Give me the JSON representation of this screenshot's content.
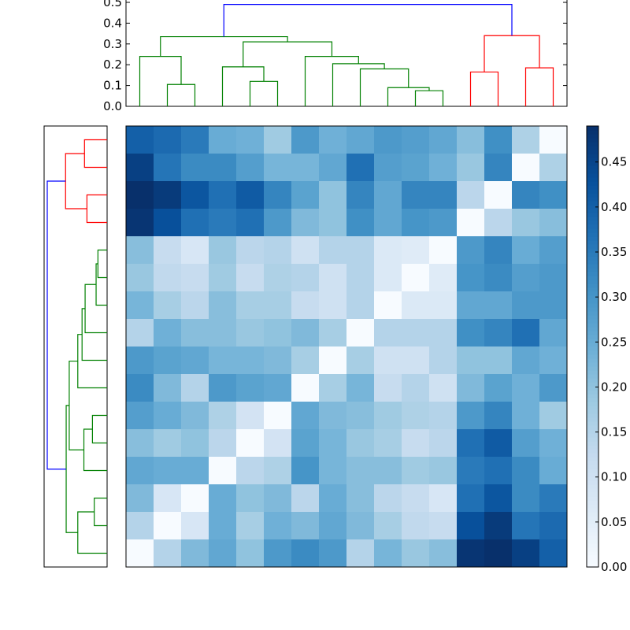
{
  "chart_data": {
    "type": "heatmap",
    "title": "",
    "colormap": "Blues",
    "value_range": [
      0,
      0.49
    ],
    "colorbar": {
      "ticks": [
        0.0,
        0.05,
        0.1,
        0.15,
        0.2,
        0.25,
        0.3,
        0.35,
        0.4,
        0.45
      ],
      "tick_labels": [
        "0.00",
        "0.05",
        "0.10",
        "0.15",
        "0.20",
        "0.25",
        "0.30",
        "0.35",
        "0.40",
        "0.45"
      ]
    },
    "matrix_rows_top_to_bottom": [
      [
        0.4,
        0.38,
        0.35,
        0.25,
        0.24,
        0.18,
        0.29,
        0.24,
        0.26,
        0.29,
        0.28,
        0.26,
        0.21,
        0.31,
        0.16,
        0.0
      ],
      [
        0.46,
        0.36,
        0.32,
        0.32,
        0.28,
        0.23,
        0.23,
        0.26,
        0.37,
        0.28,
        0.27,
        0.24,
        0.19,
        0.33,
        0.0,
        0.16
      ],
      [
        0.49,
        0.47,
        0.42,
        0.37,
        0.41,
        0.33,
        0.27,
        0.2,
        0.33,
        0.26,
        0.33,
        0.33,
        0.14,
        0.0,
        0.33,
        0.31
      ],
      [
        0.48,
        0.43,
        0.37,
        0.35,
        0.37,
        0.29,
        0.22,
        0.2,
        0.31,
        0.26,
        0.3,
        0.29,
        0.0,
        0.14,
        0.19,
        0.21
      ],
      [
        0.21,
        0.12,
        0.08,
        0.19,
        0.14,
        0.15,
        0.1,
        0.15,
        0.15,
        0.07,
        0.06,
        0.0,
        0.29,
        0.33,
        0.25,
        0.28
      ],
      [
        0.19,
        0.13,
        0.12,
        0.18,
        0.12,
        0.16,
        0.15,
        0.1,
        0.15,
        0.07,
        0.0,
        0.06,
        0.3,
        0.32,
        0.28,
        0.29
      ],
      [
        0.23,
        0.17,
        0.14,
        0.21,
        0.17,
        0.17,
        0.12,
        0.1,
        0.15,
        0.0,
        0.07,
        0.07,
        0.26,
        0.26,
        0.29,
        0.29
      ],
      [
        0.15,
        0.24,
        0.21,
        0.21,
        0.19,
        0.2,
        0.22,
        0.17,
        0.0,
        0.15,
        0.15,
        0.15,
        0.31,
        0.33,
        0.37,
        0.26
      ],
      [
        0.29,
        0.27,
        0.26,
        0.23,
        0.23,
        0.22,
        0.17,
        0.0,
        0.17,
        0.1,
        0.1,
        0.15,
        0.2,
        0.2,
        0.26,
        0.24
      ],
      [
        0.32,
        0.22,
        0.15,
        0.29,
        0.27,
        0.26,
        0.0,
        0.17,
        0.23,
        0.12,
        0.15,
        0.1,
        0.22,
        0.27,
        0.24,
        0.29
      ],
      [
        0.28,
        0.25,
        0.22,
        0.16,
        0.09,
        0.0,
        0.26,
        0.22,
        0.21,
        0.18,
        0.16,
        0.15,
        0.29,
        0.33,
        0.24,
        0.18
      ],
      [
        0.21,
        0.18,
        0.2,
        0.14,
        0.0,
        0.09,
        0.27,
        0.23,
        0.19,
        0.17,
        0.12,
        0.14,
        0.37,
        0.41,
        0.28,
        0.24
      ],
      [
        0.26,
        0.25,
        0.25,
        0.0,
        0.14,
        0.16,
        0.3,
        0.23,
        0.21,
        0.21,
        0.18,
        0.19,
        0.35,
        0.37,
        0.32,
        0.25
      ],
      [
        0.22,
        0.08,
        0.0,
        0.25,
        0.2,
        0.22,
        0.14,
        0.25,
        0.21,
        0.14,
        0.12,
        0.08,
        0.37,
        0.42,
        0.32,
        0.35
      ],
      [
        0.15,
        0.0,
        0.08,
        0.25,
        0.17,
        0.24,
        0.22,
        0.26,
        0.22,
        0.17,
        0.13,
        0.12,
        0.43,
        0.47,
        0.36,
        0.38
      ],
      [
        0.0,
        0.15,
        0.22,
        0.26,
        0.2,
        0.29,
        0.32,
        0.29,
        0.15,
        0.23,
        0.19,
        0.21,
        0.48,
        0.49,
        0.46,
        0.4
      ]
    ],
    "dendrogram": {
      "y_axis_ticks": [
        0.0,
        0.1,
        0.2,
        0.3,
        0.4,
        0.5
      ],
      "y_axis_tick_labels": [
        "0.0",
        "0.1",
        "0.2",
        "0.3",
        "0.4",
        "0.5"
      ],
      "ylim": [
        0,
        0.5
      ],
      "leaf_count": 16,
      "links": [
        {
          "x": [
            1,
            1,
            2,
            2
          ],
          "h": [
            0,
            0.105,
            0.105,
            0
          ],
          "color": "#008000"
        },
        {
          "x": [
            0,
            0,
            1.5,
            1.5
          ],
          "h": [
            0,
            0.24,
            0.24,
            0.105
          ],
          "color": "#008000"
        },
        {
          "x": [
            4,
            4,
            5,
            5
          ],
          "h": [
            0,
            0.12,
            0.12,
            0
          ],
          "color": "#008000"
        },
        {
          "x": [
            3,
            3,
            4.5,
            4.5
          ],
          "h": [
            0,
            0.19,
            0.19,
            0.12
          ],
          "color": "#008000"
        },
        {
          "x": [
            10,
            10,
            11,
            11
          ],
          "h": [
            0,
            0.075,
            0.075,
            0
          ],
          "color": "#008000"
        },
        {
          "x": [
            9,
            9,
            10.5,
            10.5
          ],
          "h": [
            0,
            0.09,
            0.09,
            0.075
          ],
          "color": "#008000"
        },
        {
          "x": [
            8,
            8,
            9.75,
            9.75
          ],
          "h": [
            0,
            0.18,
            0.18,
            0.09
          ],
          "color": "#008000"
        },
        {
          "x": [
            7,
            7,
            8.875,
            8.875
          ],
          "h": [
            0,
            0.205,
            0.205,
            0.18
          ],
          "color": "#008000"
        },
        {
          "x": [
            6,
            6,
            7.9375,
            7.9375
          ],
          "h": [
            0,
            0.24,
            0.24,
            0.205
          ],
          "color": "#008000"
        },
        {
          "x": [
            3.75,
            3.75,
            6.97,
            6.97
          ],
          "h": [
            0.19,
            0.31,
            0.31,
            0.24
          ],
          "color": "#008000"
        },
        {
          "x": [
            0.75,
            0.75,
            5.36,
            5.36
          ],
          "h": [
            0.24,
            0.335,
            0.335,
            0.31
          ],
          "color": "#008000"
        },
        {
          "x": [
            12,
            12,
            13,
            13
          ],
          "h": [
            0,
            0.165,
            0.165,
            0
          ],
          "color": "#ff0000"
        },
        {
          "x": [
            14,
            14,
            15,
            15
          ],
          "h": [
            0,
            0.185,
            0.185,
            0
          ],
          "color": "#ff0000"
        },
        {
          "x": [
            12.5,
            12.5,
            14.5,
            14.5
          ],
          "h": [
            0.165,
            0.34,
            0.34,
            0.185
          ],
          "color": "#ff0000"
        },
        {
          "x": [
            3.05,
            3.05,
            13.5,
            13.5
          ],
          "h": [
            0.335,
            0.49,
            0.49,
            0.34
          ],
          "color": "#0000ff"
        }
      ]
    }
  }
}
